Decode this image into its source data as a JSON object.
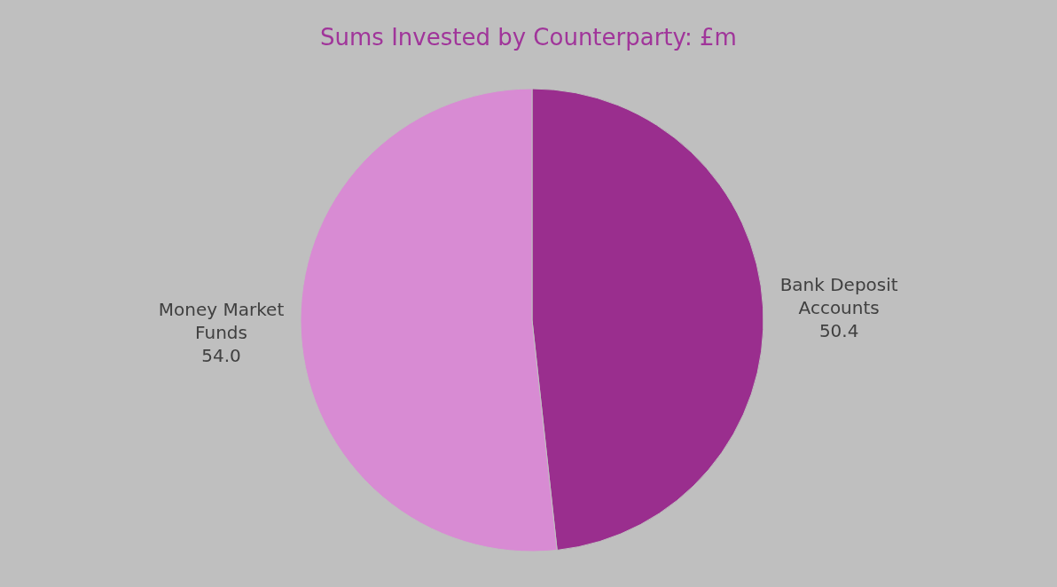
{
  "chart_data": {
    "type": "pie",
    "title": "Sums Invested by Counterparty: £m",
    "categories": [
      "Bank Deposit Accounts",
      "Money Market Funds"
    ],
    "values": [
      50.4,
      54.0
    ],
    "value_labels": [
      "50.4",
      "54.0"
    ],
    "colors": [
      "#9a2e8e",
      "#d88bd3"
    ],
    "legend": false
  }
}
